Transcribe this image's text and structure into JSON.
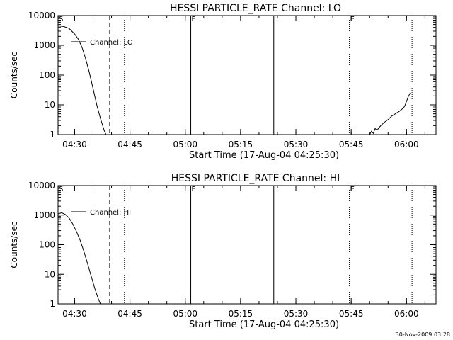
{
  "footer": {
    "timestamp": "30-Nov-2009 03:28"
  },
  "chart_data": [
    {
      "type": "line",
      "title": "HESSI PARTICLE_RATE Channel: LO",
      "xlabel": "Start Time (17-Aug-04 04:25:30)",
      "ylabel": "Counts/sec",
      "yscale": "log",
      "ylim": [
        1,
        10000
      ],
      "xlim": [
        "04:25:30",
        "06:08:00"
      ],
      "xticks": [
        "04:30",
        "04:45",
        "05:00",
        "05:15",
        "05:30",
        "05:45",
        "06:00"
      ],
      "yticks": [
        "1",
        "10",
        "100",
        "1000",
        "10000"
      ],
      "legend": {
        "entries": [
          "Channel: LO"
        ],
        "position": "top-left"
      },
      "grid": false,
      "markers": [
        {
          "label": "S",
          "time": "04:25:30",
          "style": "none"
        },
        {
          "label": "",
          "time": "04:39:30",
          "style": "dashed"
        },
        {
          "label": "",
          "time": "04:43:30",
          "style": "dotted"
        },
        {
          "label": "F",
          "time": "05:01:30",
          "style": "solid"
        },
        {
          "label": "",
          "time": "05:24:00",
          "style": "solid"
        },
        {
          "label": "E",
          "time": "05:44:30",
          "style": "dotted"
        },
        {
          "label": "",
          "time": "06:01:30",
          "style": "dotted"
        }
      ],
      "series": [
        {
          "name": "Channel: LO",
          "segments": [
            [
              [
                "04:25:30",
                4500
              ],
              [
                "04:27:00",
                4300
              ],
              [
                "04:28:30",
                3700
              ],
              [
                "04:30:00",
                2400
              ],
              [
                "04:31:00",
                1600
              ],
              [
                "04:32:00",
                850
              ],
              [
                "04:33:00",
                350
              ],
              [
                "04:34:00",
                120
              ],
              [
                "04:35:00",
                35
              ],
              [
                "04:36:00",
                10
              ],
              [
                "04:37:00",
                3.5
              ],
              [
                "04:38:00",
                1.4
              ],
              [
                "04:38:30",
                1
              ]
            ],
            [
              [
                "05:50:00",
                1
              ],
              [
                "05:50:30",
                1.3
              ],
              [
                "05:51:00",
                1.1
              ],
              [
                "05:51:30",
                1.6
              ],
              [
                "05:52:00",
                1.4
              ],
              [
                "05:53:00",
                2
              ],
              [
                "05:54:00",
                2.6
              ],
              [
                "05:55:00",
                3.2
              ],
              [
                "05:56:00",
                4.2
              ],
              [
                "05:57:00",
                5
              ],
              [
                "05:58:00",
                6
              ],
              [
                "05:59:00",
                7.5
              ],
              [
                "05:59:30",
                9
              ],
              [
                "06:00:00",
                13
              ],
              [
                "06:00:30",
                19
              ],
              [
                "06:01:00",
                25
              ]
            ]
          ]
        }
      ]
    },
    {
      "type": "line",
      "title": "HESSI PARTICLE_RATE Channel: HI",
      "xlabel": "Start Time (17-Aug-04 04:25:30)",
      "ylabel": "Counts/sec",
      "yscale": "log",
      "ylim": [
        1,
        10000
      ],
      "xlim": [
        "04:25:30",
        "06:08:00"
      ],
      "xticks": [
        "04:30",
        "04:45",
        "05:00",
        "05:15",
        "05:30",
        "05:45",
        "06:00"
      ],
      "yticks": [
        "1",
        "10",
        "100",
        "1000",
        "10000"
      ],
      "legend": {
        "entries": [
          "Channel: HI"
        ],
        "position": "top-left"
      },
      "grid": false,
      "markers": [
        {
          "label": "S",
          "time": "04:25:30",
          "style": "none"
        },
        {
          "label": "",
          "time": "04:39:30",
          "style": "dashed"
        },
        {
          "label": "",
          "time": "04:43:30",
          "style": "dotted"
        },
        {
          "label": "F",
          "time": "05:01:30",
          "style": "solid"
        },
        {
          "label": "",
          "time": "05:24:00",
          "style": "solid"
        },
        {
          "label": "E",
          "time": "05:44:30",
          "style": "dotted"
        },
        {
          "label": "",
          "time": "06:01:30",
          "style": "dotted"
        }
      ],
      "series": [
        {
          "name": "Channel: HI",
          "segments": [
            [
              [
                "04:25:30",
                1100
              ],
              [
                "04:26:30",
                1200
              ],
              [
                "04:27:30",
                1050
              ],
              [
                "04:28:30",
                800
              ],
              [
                "04:29:30",
                500
              ],
              [
                "04:30:30",
                280
              ],
              [
                "04:31:30",
                140
              ],
              [
                "04:32:30",
                60
              ],
              [
                "04:33:30",
                23
              ],
              [
                "04:34:30",
                8.5
              ],
              [
                "04:35:30",
                3.2
              ],
              [
                "04:36:30",
                1.4
              ],
              [
                "04:37:00",
                1
              ]
            ]
          ]
        }
      ]
    }
  ]
}
